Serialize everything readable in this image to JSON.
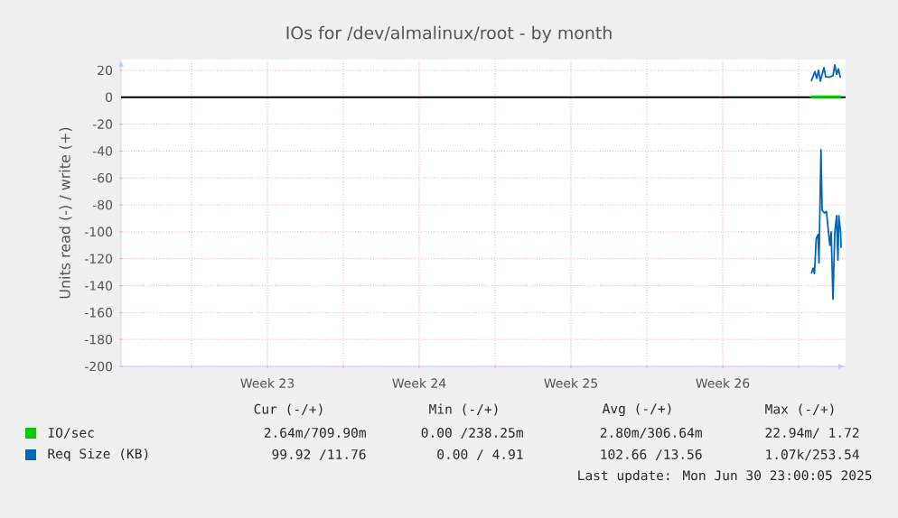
{
  "chart_data": {
    "type": "line",
    "title": "IOs for /dev/almalinux/root - by month",
    "ylabel": "Units read (-) / write (+)",
    "xlim": [
      "2025-05-28T18:00",
      "2025-07-01T04:00"
    ],
    "ylim": [
      -200,
      28
    ],
    "xticks": [
      {
        "value": "2025-06-01",
        "label": null
      },
      {
        "value": "2025-06-04T12:00",
        "label": "Week 23"
      },
      {
        "value": "2025-06-08",
        "label": null
      },
      {
        "value": "2025-06-11T12:00",
        "label": "Week 24"
      },
      {
        "value": "2025-06-15",
        "label": null
      },
      {
        "value": "2025-06-18T12:00",
        "label": "Week 25"
      },
      {
        "value": "2025-06-22",
        "label": null
      },
      {
        "value": "2025-06-25T12:00",
        "label": "Week 26"
      },
      {
        "value": "2025-06-29",
        "label": null
      }
    ],
    "yticks": [
      -200,
      -180,
      -160,
      -140,
      -120,
      -100,
      -80,
      -60,
      -40,
      -20,
      0,
      20
    ],
    "grid": true,
    "legend": "bottom",
    "line_style": "solid",
    "marker": "none",
    "ref_lines": [
      {
        "axis": "y",
        "value": 0,
        "color": "#000000"
      }
    ],
    "series": [
      {
        "name": "IO/sec",
        "color": "#00cc00",
        "x": [
          "2025-06-29T14:00",
          "2025-06-30T23:00"
        ],
        "values": [
          0.7,
          0.7
        ]
      },
      {
        "color": "#00cc00",
        "x": [
          "2025-06-29T14:00",
          "2025-06-30T23:00"
        ],
        "values": [
          0,
          0
        ]
      },
      {
        "name": "Req Size (KB)",
        "color": "#0066b3",
        "x": [
          "2025-06-29T14:00",
          "2025-06-29T18:00",
          "2025-06-29T20:00",
          "2025-06-29T22:00",
          "2025-06-30T00:00",
          "2025-06-30T02:00",
          "2025-06-30T04:00",
          "2025-06-30T06:00",
          "2025-06-30T10:00",
          "2025-06-30T14:00",
          "2025-06-30T16:00",
          "2025-06-30T18:00",
          "2025-06-30T20:00",
          "2025-06-30T22:00",
          "2025-06-30T23:00"
        ],
        "values": [
          12,
          19,
          14,
          20,
          12,
          17,
          22,
          15,
          15,
          16,
          24,
          17,
          21,
          15,
          15
        ]
      },
      {
        "color": "#0066b3",
        "x": [
          "2025-06-29T14:00",
          "2025-06-29T16:00",
          "2025-06-29T17:30",
          "2025-06-29T19:30",
          "2025-06-29T21:30",
          "2025-06-29T22:30",
          "2025-06-30T00:45",
          "2025-06-30T02:00",
          "2025-06-30T04:30",
          "2025-06-30T06:45",
          "2025-06-30T09:30",
          "2025-06-30T10:30",
          "2025-06-30T12:00",
          "2025-06-30T14:00",
          "2025-06-30T16:00",
          "2025-06-30T18:00",
          "2025-06-30T19:30",
          "2025-06-30T20:30",
          "2025-06-30T22:30",
          "2025-06-30T23:00"
        ],
        "values": [
          -131,
          -127,
          -131,
          -105,
          -102,
          -123,
          -39,
          -84,
          -86,
          -85,
          -103,
          -110,
          -100,
          -150,
          -101,
          -88,
          -121,
          -88,
          -101,
          -112
        ]
      }
    ],
    "annotations": [
      "Cur (-/+)",
      "Min (-/+)",
      "Avg (-/+)",
      "Max (-/+)",
      "2.64m/709.90m",
      "0.00 /238.25m",
      "2.80m/306.64m",
      "22.94m/ 1.72",
      "99.92 /11.76",
      "0.00 / 4.91",
      "102.66 /13.56",
      "1.07k/253.54",
      "Last update: Mon Jun 30 23:00:05 2025"
    ]
  }
}
